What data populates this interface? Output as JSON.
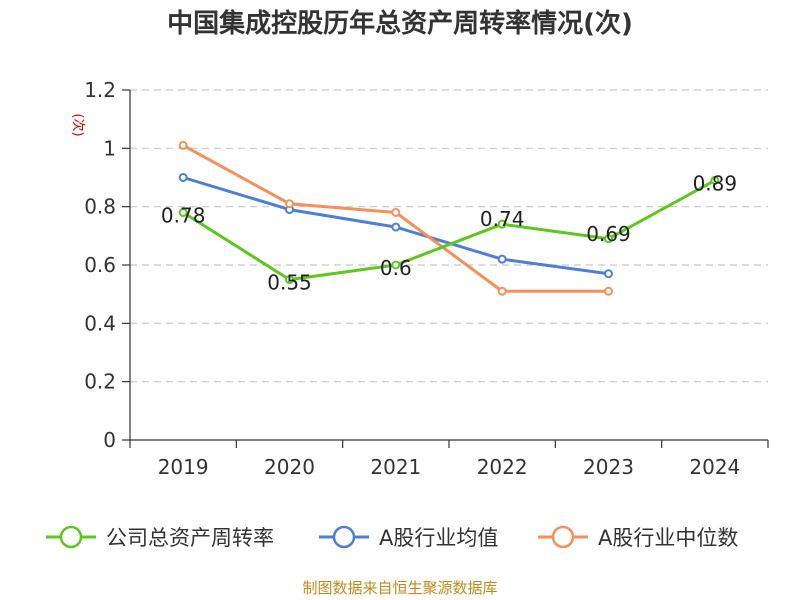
{
  "chart_data": {
    "type": "line",
    "title": "中国集成控股历年总资产周转率情况(次)",
    "ylabel": "(次)",
    "xlabel": "",
    "categories": [
      "2019",
      "2020",
      "2021",
      "2022",
      "2023",
      "2024"
    ],
    "ylim": [
      0,
      1.2
    ],
    "yticks": [
      "0",
      "0.2",
      "0.4",
      "0.6",
      "0.8",
      "1",
      "1.2"
    ],
    "grid": "horizontal-dashed",
    "legend_position": "bottom",
    "series": [
      {
        "name": "公司总资产周转率",
        "color": "#5cc81e",
        "values": [
          0.78,
          0.55,
          0.6,
          0.74,
          0.69,
          0.89
        ],
        "labels": [
          "0.78",
          "0.55",
          "0.6",
          "0.74",
          "0.69",
          "0.89"
        ]
      },
      {
        "name": "A股行业均值",
        "color": "#4e7fd8",
        "values": [
          0.9,
          0.79,
          0.73,
          0.62,
          0.57,
          null
        ]
      },
      {
        "name": "A股行业中位数",
        "color": "#f58f5c",
        "values": [
          1.01,
          0.81,
          0.78,
          0.51,
          0.51,
          null
        ]
      }
    ],
    "source": "制图数据来自恒生聚源数据库"
  }
}
